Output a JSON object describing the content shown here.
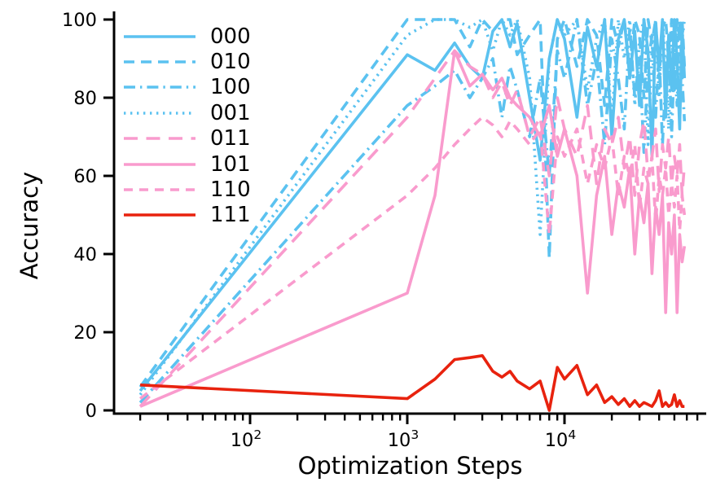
{
  "chart_data": {
    "type": "line",
    "title": "",
    "xlabel": "Optimization Steps",
    "ylabel": "Accuracy",
    "x_scale": "log",
    "xlim": [
      13.6,
      79000
    ],
    "ylim": [
      0,
      100
    ],
    "grid": false,
    "legend_position": "upper left",
    "y_ticks": [
      0,
      20,
      40,
      60,
      80,
      100
    ],
    "x_major_ticks": [
      {
        "value": 100,
        "base": "10",
        "exp": "2"
      },
      {
        "value": 1000,
        "base": "10",
        "exp": "3"
      },
      {
        "value": 10000,
        "base": "10",
        "exp": "4"
      }
    ],
    "colors": {
      "blue": "#5bc2f0",
      "pink": "#f99bcd",
      "red": "#e8220e",
      "axis": "#000000"
    },
    "x": [
      20,
      1000,
      1500,
      2000,
      2500,
      3000,
      3500,
      4000,
      4500,
      5000,
      6000,
      7000,
      8000,
      9000,
      10000,
      12000,
      14000,
      16000,
      18000,
      20000,
      22000,
      24000,
      26000,
      28000,
      30000,
      32000,
      34000,
      36000,
      38000,
      40000,
      42000,
      44000,
      46000,
      48000,
      50000,
      52000,
      54000,
      56000,
      58000
    ],
    "series": [
      {
        "name": "000",
        "color": "#5bc2f0",
        "style": "solid",
        "values": [
          5,
          91,
          87,
          94,
          88,
          85,
          97,
          100,
          93,
          99,
          80,
          64,
          90,
          100,
          95,
          75,
          98,
          88,
          100,
          70,
          95,
          100,
          85,
          97,
          78,
          100,
          92,
          65,
          99,
          88,
          100,
          75,
          96,
          82,
          100,
          90,
          72,
          98,
          85
        ]
      },
      {
        "name": "010",
        "color": "#5bc2f0",
        "style": "dashed",
        "values": [
          6,
          100,
          100,
          100,
          93,
          100,
          97,
          100,
          100,
          91,
          96,
          100,
          39,
          95,
          100,
          88,
          100,
          96,
          78,
          100,
          93,
          100,
          87,
          100,
          96,
          80,
          100,
          94,
          100,
          85,
          98,
          100,
          90,
          100,
          82,
          100,
          95,
          100,
          88
        ]
      },
      {
        "name": "100",
        "color": "#5bc2f0",
        "style": "dashdot",
        "values": [
          2,
          78,
          83,
          87,
          80,
          85,
          90,
          75,
          88,
          82,
          70,
          85,
          60,
          92,
          85,
          100,
          78,
          90,
          68,
          95,
          85,
          72,
          98,
          80,
          90,
          66,
          88,
          96,
          75,
          92,
          68,
          85,
          95,
          70,
          90,
          78,
          100,
          85,
          74
        ]
      },
      {
        "name": "001",
        "color": "#5bc2f0",
        "style": "dotted",
        "values": [
          4,
          96,
          100,
          100,
          98,
          100,
          92,
          100,
          96,
          100,
          85,
          45,
          90,
          100,
          96,
          100,
          82,
          95,
          100,
          74,
          100,
          90,
          100,
          78,
          95,
          100,
          68,
          92,
          100,
          80,
          100,
          88,
          72,
          100,
          92,
          100,
          76,
          95,
          100
        ]
      },
      {
        "name": "011",
        "color": "#f99bcd",
        "style": "longdash",
        "values": [
          1,
          75,
          85,
          92,
          88,
          86,
          80,
          84,
          78,
          82,
          70,
          75,
          60,
          80,
          72,
          65,
          78,
          58,
          72,
          68,
          75,
          62,
          70,
          55,
          68,
          74,
          60,
          65,
          72,
          56,
          68,
          62,
          70,
          58,
          65,
          60,
          68,
          55,
          63
        ]
      },
      {
        "name": "101",
        "color": "#f99bcd",
        "style": "solid",
        "values": [
          1,
          30,
          55,
          92,
          83,
          86,
          82,
          85,
          80,
          78,
          75,
          70,
          78,
          65,
          72,
          60,
          30,
          55,
          65,
          45,
          58,
          52,
          62,
          40,
          55,
          48,
          58,
          35,
          52,
          45,
          55,
          25,
          48,
          40,
          50,
          25,
          45,
          38,
          42
        ]
      },
      {
        "name": "110",
        "color": "#f99bcd",
        "style": "shortdash",
        "values": [
          3,
          55,
          62,
          68,
          72,
          75,
          73,
          70,
          74,
          72,
          68,
          72,
          45,
          70,
          65,
          72,
          58,
          68,
          62,
          70,
          55,
          65,
          60,
          68,
          52,
          62,
          58,
          65,
          48,
          60,
          55,
          62,
          50,
          58,
          52,
          60,
          46,
          55,
          50
        ]
      },
      {
        "name": "111",
        "color": "#e8220e",
        "style": "solid",
        "values": [
          6.5,
          3,
          8,
          13,
          13.5,
          14,
          10,
          8.5,
          10,
          7.5,
          5.5,
          7.5,
          0,
          11,
          8,
          11.5,
          4,
          6.5,
          2,
          3.5,
          1.5,
          3,
          1,
          2.5,
          1,
          2,
          1.5,
          1,
          2.5,
          5,
          1,
          2,
          1,
          1.5,
          4,
          1,
          2.5,
          1,
          1
        ]
      }
    ]
  }
}
